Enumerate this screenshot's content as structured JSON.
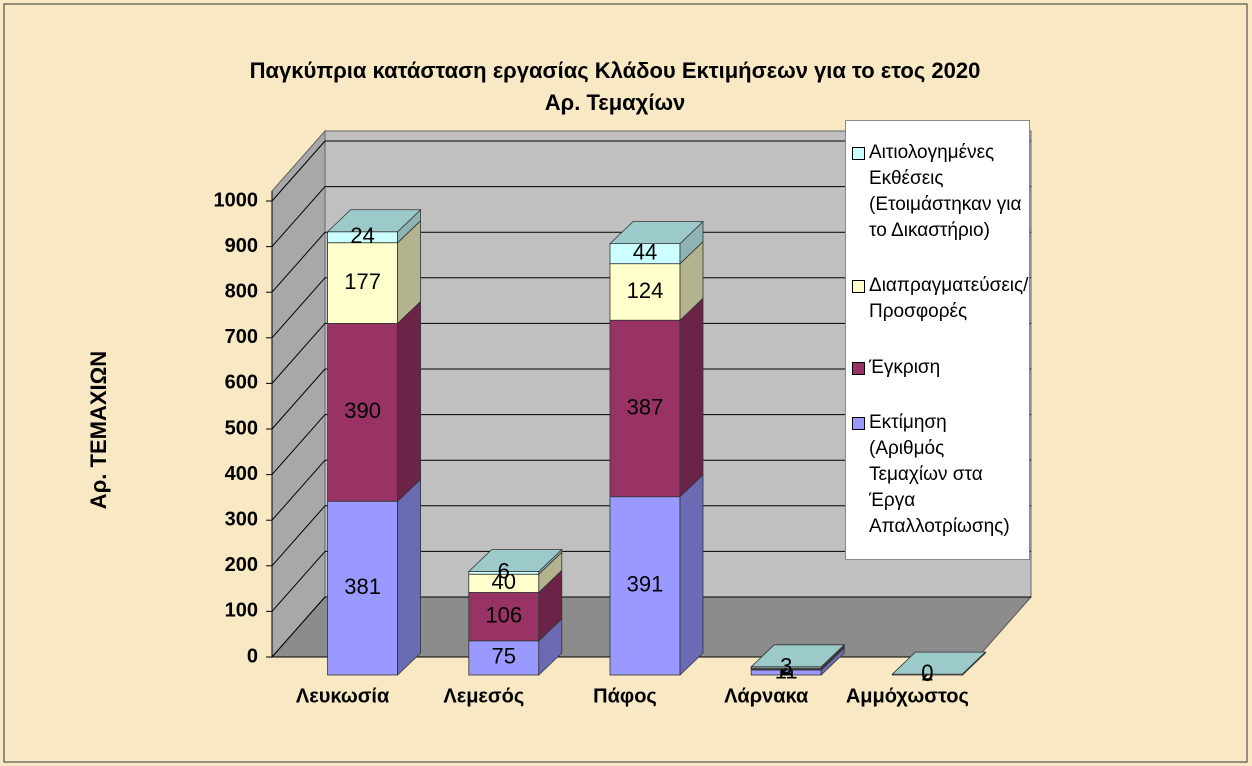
{
  "chart_data": {
    "type": "bar3d_stacked",
    "title": "Παγκύπρια κατάσταση εργασίας Κλάδου Εκτιμήσεων για το ετος 2020",
    "subtitle": "Αρ. Τεμαχίων",
    "y_label": "Αρ. ΤΕΜΑΧΙΩΝ",
    "categories": [
      "Λευκωσία",
      "Λεμεσός",
      "Πάφος",
      "Λάρνακα",
      "Αμμόχωστος"
    ],
    "series": [
      {
        "name": "Εκτίμηση (Αριθμός Τεμαχίων στα Έργα Απαλλοτρίωσης)",
        "color": "#9999ff",
        "values": [
          381,
          75,
          391,
          11,
          0
        ]
      },
      {
        "name": "Έγκριση",
        "color": "#993366",
        "values": [
          390,
          106,
          387,
          2,
          0
        ]
      },
      {
        "name": "Διαπραγματεύσεις/ Προσφορές",
        "color": "#ffffcc",
        "values": [
          177,
          40,
          124,
          2,
          2
        ]
      },
      {
        "name": "Αιτιολογημένες Εκθέσεις (Ετοιμάστηκαν για το Δικαστήριο)",
        "color": "#ccffff",
        "values": [
          24,
          6,
          44,
          3,
          0
        ]
      }
    ],
    "ylim": [
      0,
      1000
    ],
    "yticks": [
      0,
      100,
      200,
      300,
      400,
      500,
      600,
      700,
      800,
      900,
      1000
    ],
    "grid": true,
    "legend": "right"
  }
}
